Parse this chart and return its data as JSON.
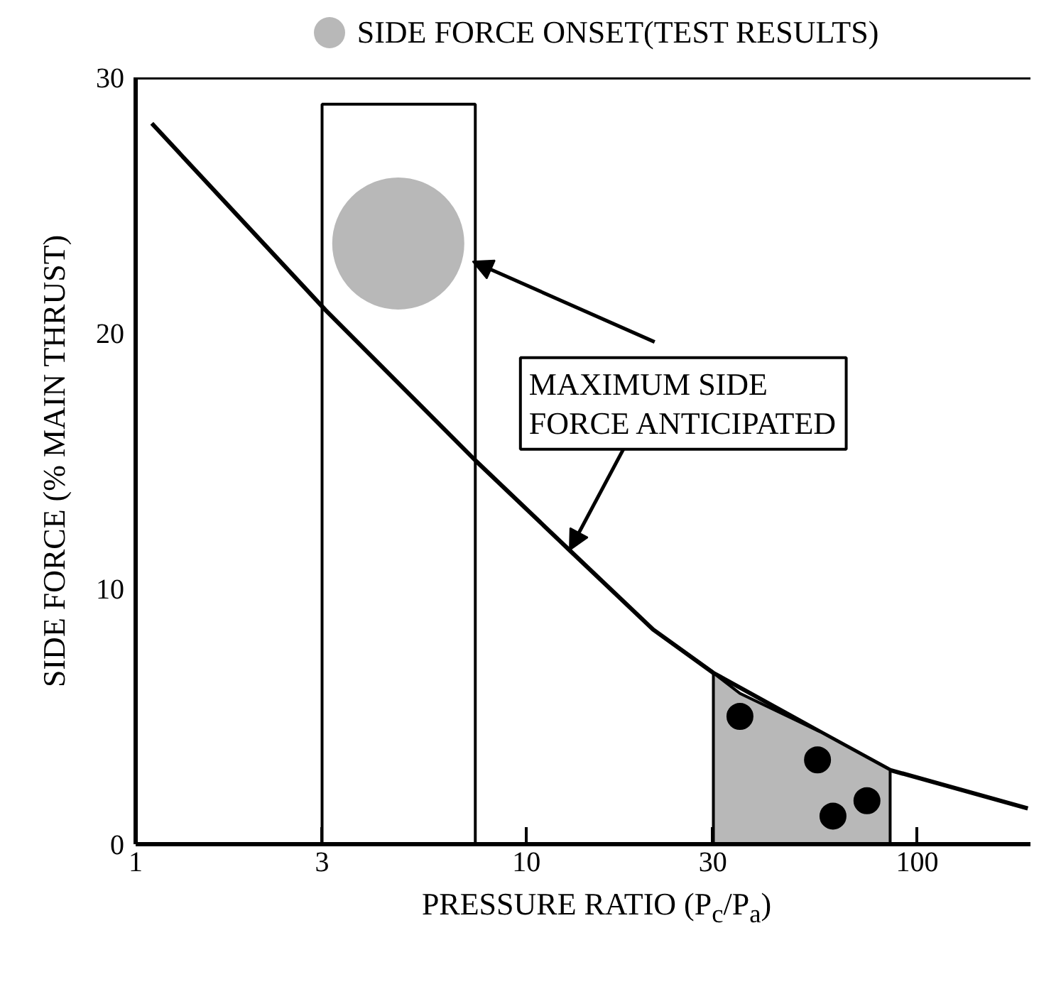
{
  "chart_data": {
    "type": "line",
    "xlabel": "PRESSURE RATIO (P$_{c}$/P$_{a}$)",
    "ylabel": "SIDE FORCE (% MAIN THRUST)",
    "log": "x",
    "xlim": [
      1,
      195
    ],
    "xticks": [
      1,
      3,
      10,
      30,
      100
    ],
    "ylim": [
      0,
      30
    ],
    "yticks": [
      0,
      10,
      20,
      30
    ],
    "legend": "top",
    "series": [
      {
        "color": "#000000",
        "x": [
          1.1,
          3.06,
          7.42,
          12.9,
          21.1,
          30.1,
          56.4,
          85.3,
          192
        ],
        "values": [
          28.2,
          20.9,
          15.0,
          11.5,
          8.4,
          6.7,
          4.4,
          2.9,
          1.4
        ]
      },
      {
        "type": "area",
        "color": "#b8b8b8",
        "x": [
          30.1,
          35.2,
          56.4,
          85.3
        ],
        "values": [
          6.7,
          5.9,
          4.4,
          2.9
        ]
      },
      {
        "type": "scatter",
        "color": "#000000",
        "marker": "circle",
        "x": [
          35.2,
          55.6,
          60.9,
          74.4
        ],
        "values": [
          5.0,
          3.3,
          1.1,
          1.7
        ]
      },
      {
        "type": "scatter",
        "name": "SIDE FORCE ONSET(TEST RESULTS)",
        "color": "#b8b8b8",
        "marker": "circle",
        "x": [
          4.7
        ],
        "values": [
          23.5
        ]
      }
    ],
    "bands": [
      {
        "axis": "x",
        "from": 3,
        "to": 7.4,
        "color": "#ffffff"
      }
    ],
    "annotations": [
      {
        "text": "MAXIMUM SIDE\nFORCE ANTICIPATED",
        "x": 12.9,
        "y": 11.5
      }
    ]
  }
}
